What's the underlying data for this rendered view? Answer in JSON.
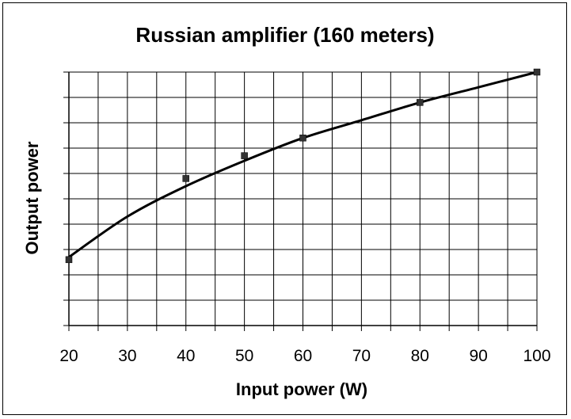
{
  "chart_data": {
    "type": "scatter",
    "title": "Russian amplifier (160 meters)",
    "xlabel": "Input power (W)",
    "ylabel": "Output power",
    "xlim": [
      20,
      100
    ],
    "x_ticks": [
      20,
      30,
      40,
      50,
      60,
      70,
      80,
      90,
      100
    ],
    "ylim": [
      0,
      10
    ],
    "y_tick_labels": false,
    "grid": true,
    "legend": "none",
    "series": [
      {
        "points": [
          {
            "x": 20,
            "y": 2.6
          },
          {
            "x": 40,
            "y": 5.8
          },
          {
            "x": 50,
            "y": 6.7
          },
          {
            "x": 60,
            "y": 7.4
          },
          {
            "x": 80,
            "y": 8.8
          },
          {
            "x": 100,
            "y": 10.0
          }
        ],
        "marker": "square",
        "color": "#333333"
      }
    ],
    "trendline": {
      "type": "curve",
      "color": "#000000",
      "points": [
        {
          "x": 20,
          "y": 2.7
        },
        {
          "x": 30,
          "y": 4.3
        },
        {
          "x": 40,
          "y": 5.5
        },
        {
          "x": 50,
          "y": 6.5
        },
        {
          "x": 60,
          "y": 7.4
        },
        {
          "x": 70,
          "y": 8.1
        },
        {
          "x": 80,
          "y": 8.8
        },
        {
          "x": 90,
          "y": 9.4
        },
        {
          "x": 100,
          "y": 10.0
        }
      ]
    }
  }
}
